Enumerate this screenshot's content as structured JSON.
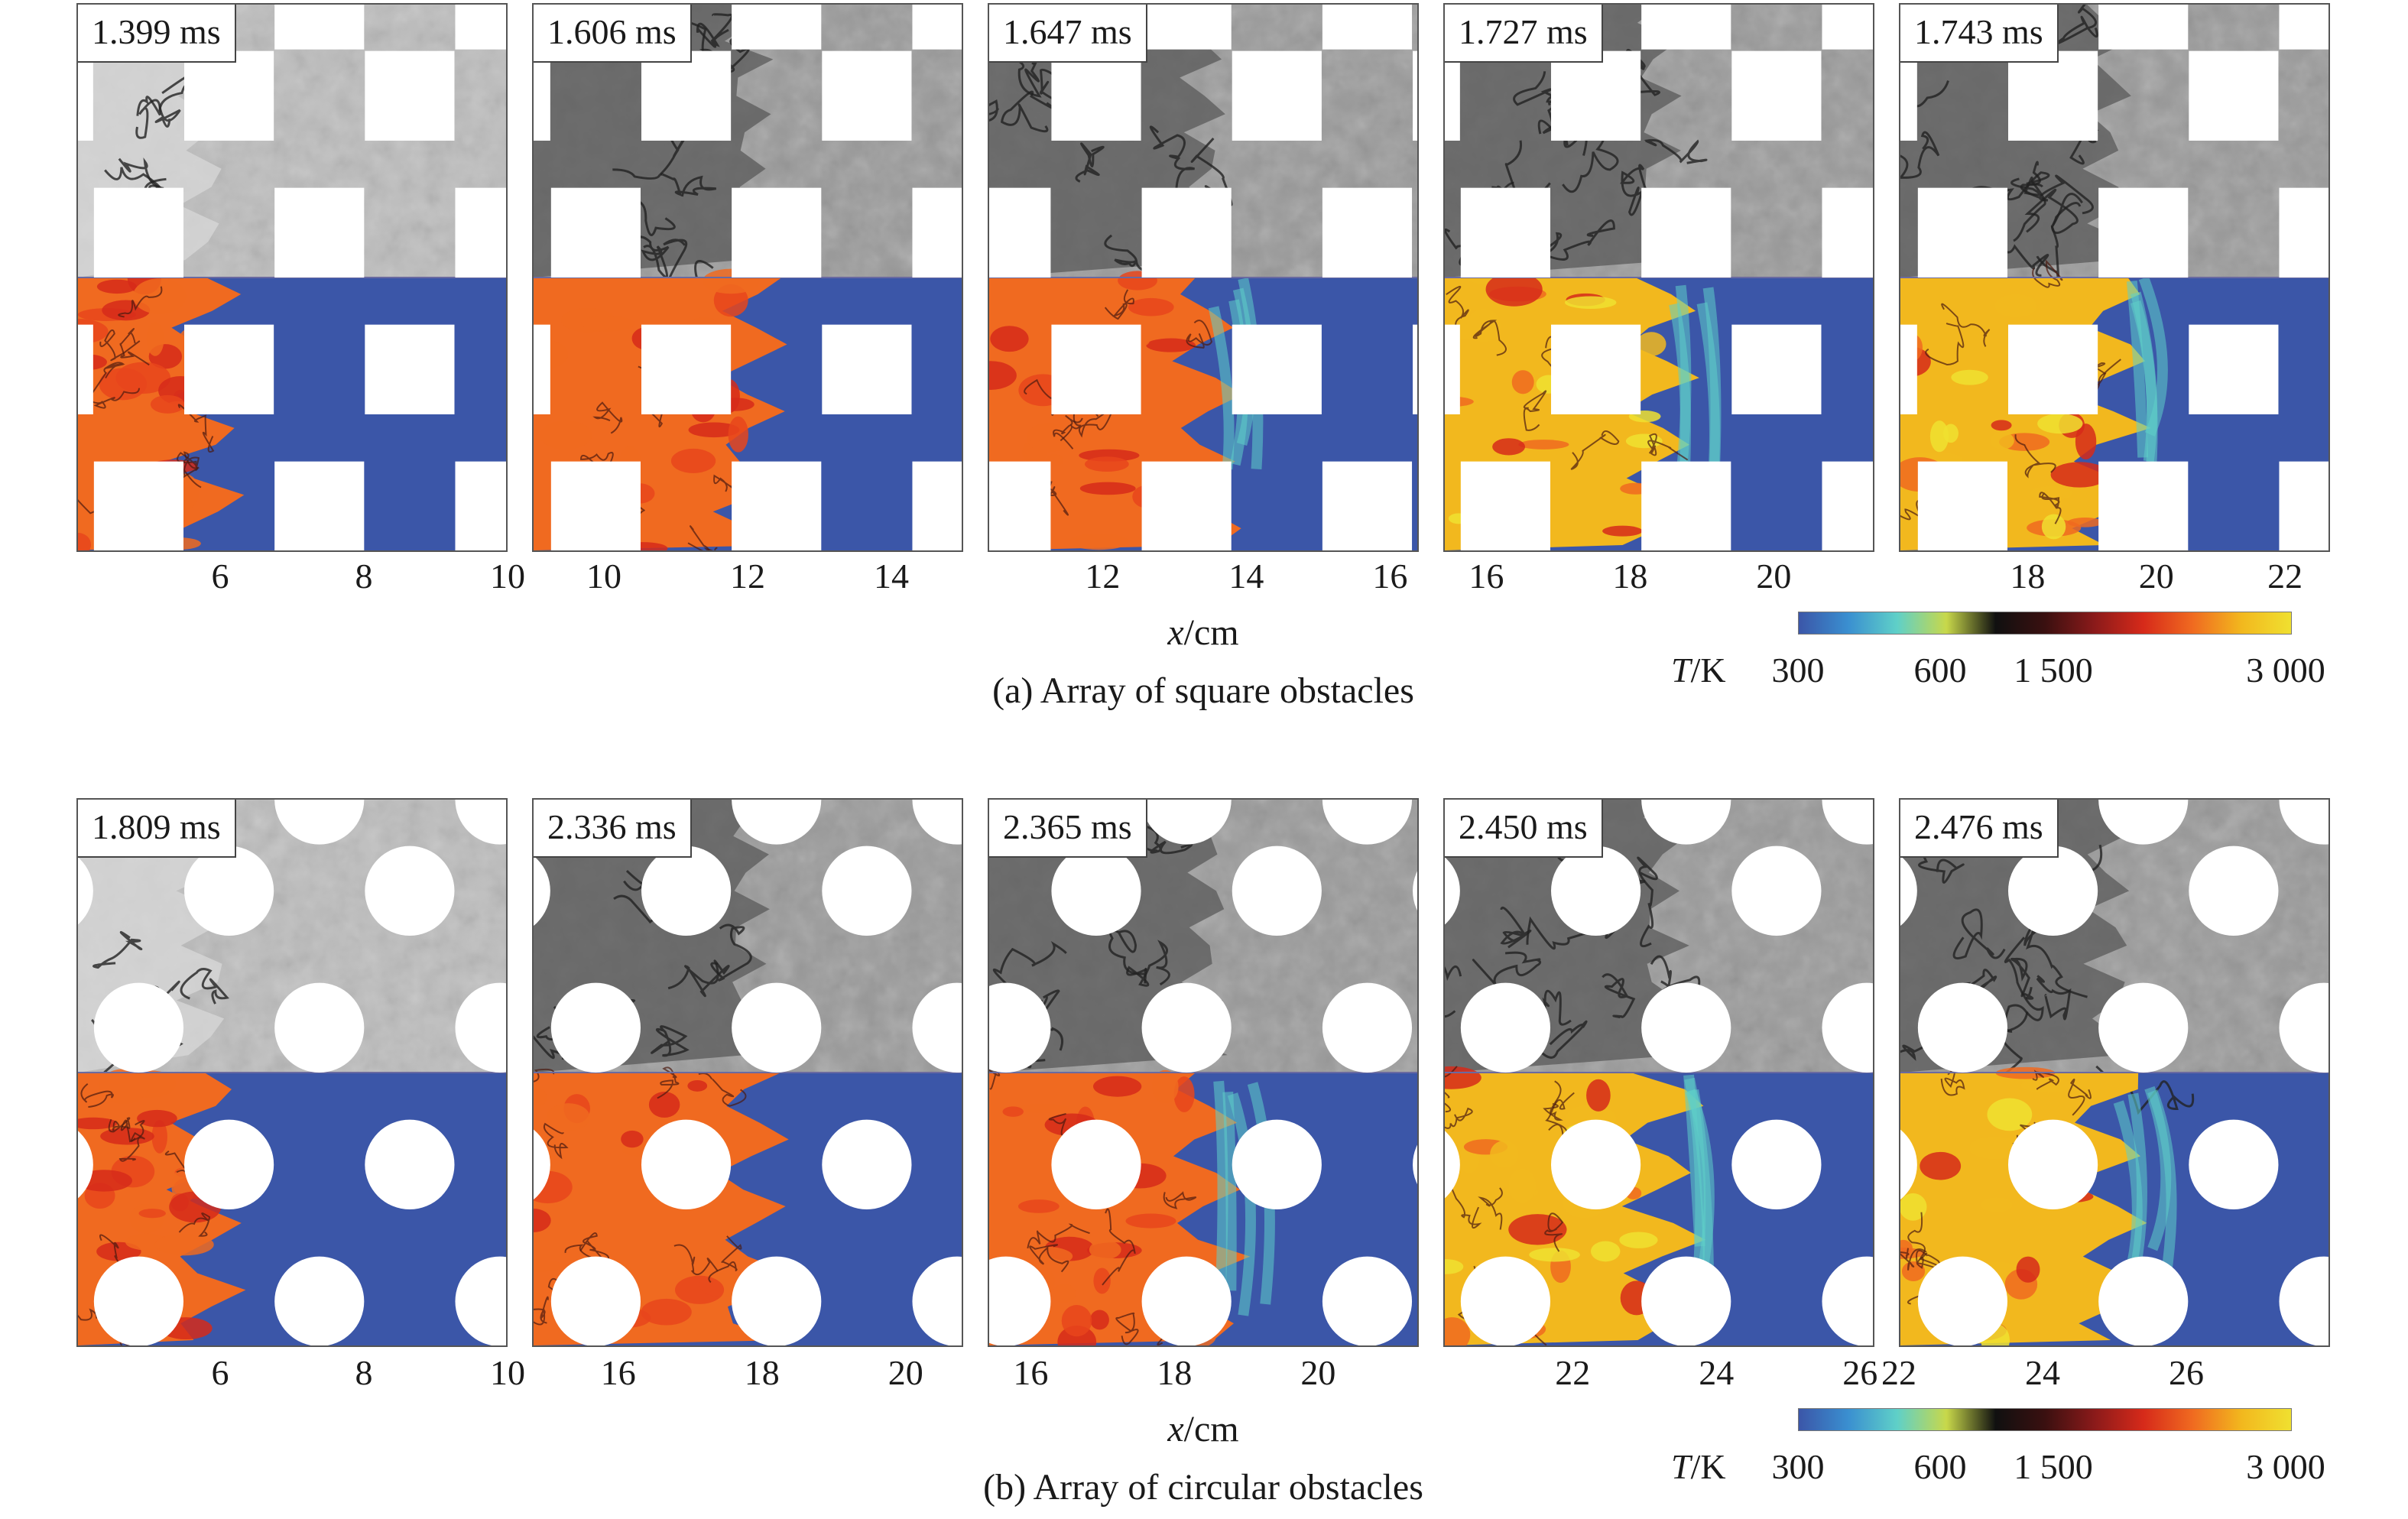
{
  "figure": {
    "x_axis_title_italic": "x",
    "x_axis_title_unit": "/cm",
    "colorbar": {
      "title_italic": "T",
      "title_unit": "/K",
      "ticks": [
        "300",
        "600",
        "1 500",
        "3 000"
      ],
      "colors": [
        "#3b56a8",
        "#3a8fd0",
        "#5fd0c8",
        "#c8d84a",
        "#101010",
        "#3a1010",
        "#8a1a1a",
        "#d62a1a",
        "#f06a20",
        "#f2b81e",
        "#f0e030"
      ]
    }
  },
  "rows": [
    {
      "caption": "(a) Array of square obstacles",
      "obstacle_shape": "square",
      "panels": [
        {
          "time": "1.399 ms",
          "ticks": [
            "6",
            "8",
            "10"
          ],
          "tick_values": [
            6,
            8,
            10
          ],
          "x_range": [
            4,
            10
          ]
        },
        {
          "time": "1.606 ms",
          "ticks": [
            "10",
            "12",
            "14"
          ],
          "tick_values": [
            10,
            12,
            14
          ],
          "x_range": [
            9,
            15
          ]
        },
        {
          "time": "1.647 ms",
          "ticks": [
            "12",
            "14",
            "16"
          ],
          "tick_values": [
            12,
            14,
            16
          ],
          "x_range": [
            10.4,
            16.4
          ]
        },
        {
          "time": "1.727 ms",
          "ticks": [
            "16",
            "18",
            "20"
          ],
          "tick_values": [
            16,
            18,
            20
          ],
          "x_range": [
            15.4,
            21.4
          ]
        },
        {
          "time": "1.743 ms",
          "ticks": [
            "18",
            "20",
            "22"
          ],
          "tick_values": [
            18,
            20,
            22
          ],
          "x_range": [
            16,
            22.7
          ]
        }
      ]
    },
    {
      "caption": "(b) Array of circular obstacles",
      "obstacle_shape": "circle",
      "panels": [
        {
          "time": "1.809 ms",
          "ticks": [
            "6",
            "8",
            "10"
          ],
          "tick_values": [
            6,
            8,
            10
          ],
          "x_range": [
            4,
            10
          ]
        },
        {
          "time": "2.336 ms",
          "ticks": [
            "16",
            "18",
            "20"
          ],
          "tick_values": [
            16,
            18,
            20
          ],
          "x_range": [
            14.8,
            20.8
          ]
        },
        {
          "time": "2.365 ms",
          "ticks": [
            "16",
            "18",
            "20"
          ],
          "tick_values": [
            16,
            18,
            20
          ],
          "x_range": [
            15.4,
            21.4
          ]
        },
        {
          "time": "2.450 ms",
          "ticks": [
            "22",
            "24",
            "26"
          ],
          "tick_values": [
            22,
            24,
            26
          ],
          "x_range": [
            20.2,
            26.2
          ]
        },
        {
          "time": "2.476 ms",
          "ticks": [
            "22",
            "24",
            "26"
          ],
          "tick_values": [
            22,
            24,
            26
          ],
          "x_range": [
            22,
            28
          ]
        }
      ]
    }
  ]
}
